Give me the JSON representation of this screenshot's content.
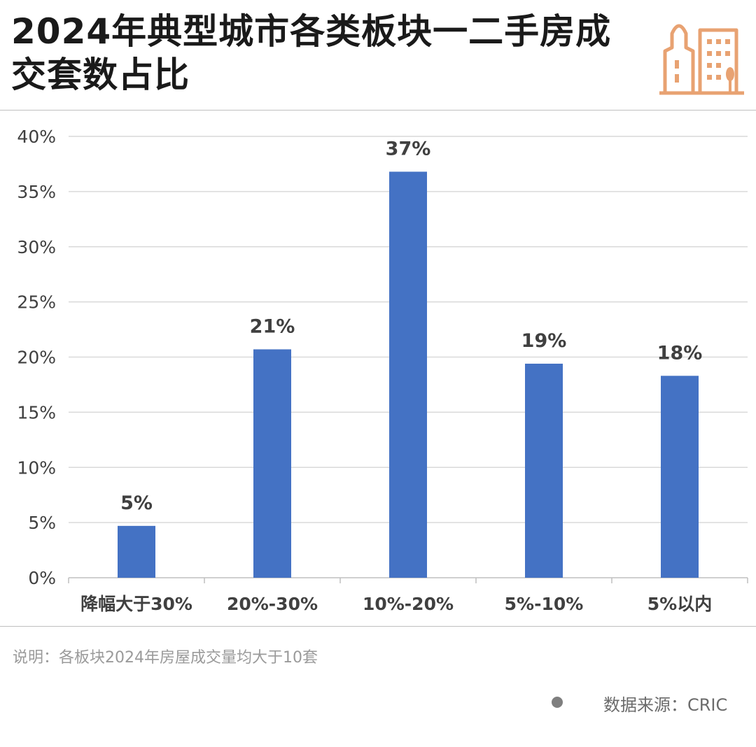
{
  "title": "2024年典型城市各类板块一二手房成交套数占比",
  "note": "说明：各板块2024年房屋成交量均大于10套",
  "source": "数据来源：CRIC",
  "colors": {
    "bar": "#4472c4",
    "grid": "#d9d9d9",
    "icon": "#e8a272"
  },
  "icon": "city-buildings-icon",
  "chart_data": {
    "type": "bar",
    "categories": [
      "降幅大于30%",
      "20%-30%",
      "10%-20%",
      "5%-10%",
      "5%以内"
    ],
    "values": [
      4.7,
      20.7,
      36.8,
      19.4,
      18.3
    ],
    "data_labels": [
      "5%",
      "21%",
      "37%",
      "19%",
      "18%"
    ],
    "ylim": [
      0,
      40
    ],
    "yticks": [
      "0%",
      "5%",
      "10%",
      "15%",
      "20%",
      "25%",
      "30%",
      "35%",
      "40%"
    ],
    "grid": true,
    "legend": "none"
  }
}
